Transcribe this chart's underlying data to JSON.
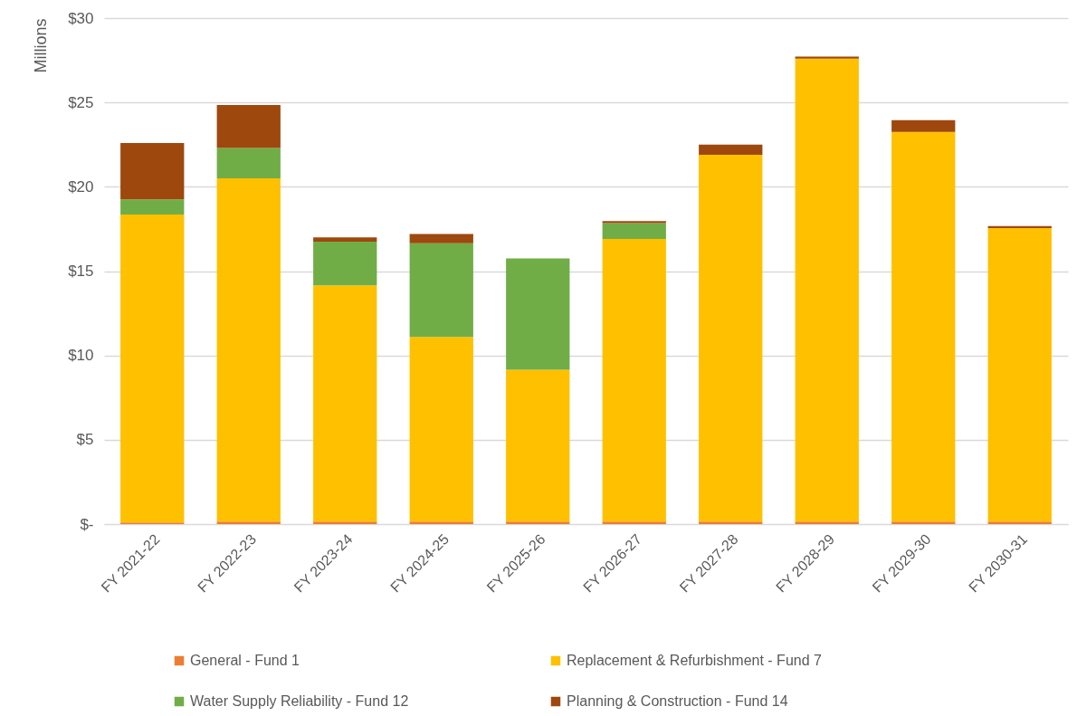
{
  "chart_data": {
    "type": "bar",
    "stacked": true,
    "ylabel": "Millions",
    "categories": [
      "FY 2021-22",
      "FY 2022-23",
      "FY 2023-24",
      "FY 2024-25",
      "FY 2025-26",
      "FY 2026-27",
      "FY 2027-28",
      "FY 2028-29",
      "FY 2029-30",
      "FY 2030-31"
    ],
    "series": [
      {
        "name": "General - Fund 1",
        "color": "#ed7d31",
        "values": [
          0.1,
          0.15,
          0.15,
          0.15,
          0.15,
          0.15,
          0.15,
          0.15,
          0.15,
          0.15
        ]
      },
      {
        "name": "Replacement & Refurbishment - Fund 7",
        "color": "#ffc000",
        "values": [
          18.25,
          20.35,
          14.0,
          10.95,
          9.0,
          16.75,
          21.75,
          27.45,
          23.1,
          17.4
        ]
      },
      {
        "name": "Water Supply Reliability - Fund 12",
        "color": "#70ad47",
        "values": [
          0.9,
          1.8,
          2.6,
          5.55,
          6.6,
          0.95,
          null,
          null,
          null,
          null
        ]
      },
      {
        "name": "Planning & Construction - Fund 14",
        "color": "#9e480e",
        "values": [
          3.35,
          2.55,
          0.25,
          0.55,
          null,
          0.12,
          0.6,
          0.12,
          0.7,
          0.12
        ]
      }
    ],
    "ylim": [
      0,
      30
    ],
    "yticks": [
      {
        "value": 0,
        "label": "$-"
      },
      {
        "value": 5,
        "label": "$5"
      },
      {
        "value": 10,
        "label": "$10"
      },
      {
        "value": 15,
        "label": "$15"
      },
      {
        "value": 20,
        "label": "$20"
      },
      {
        "value": 25,
        "label": "$25"
      },
      {
        "value": 30,
        "label": "$30"
      }
    ],
    "grid": "y",
    "legend": "bottom"
  }
}
